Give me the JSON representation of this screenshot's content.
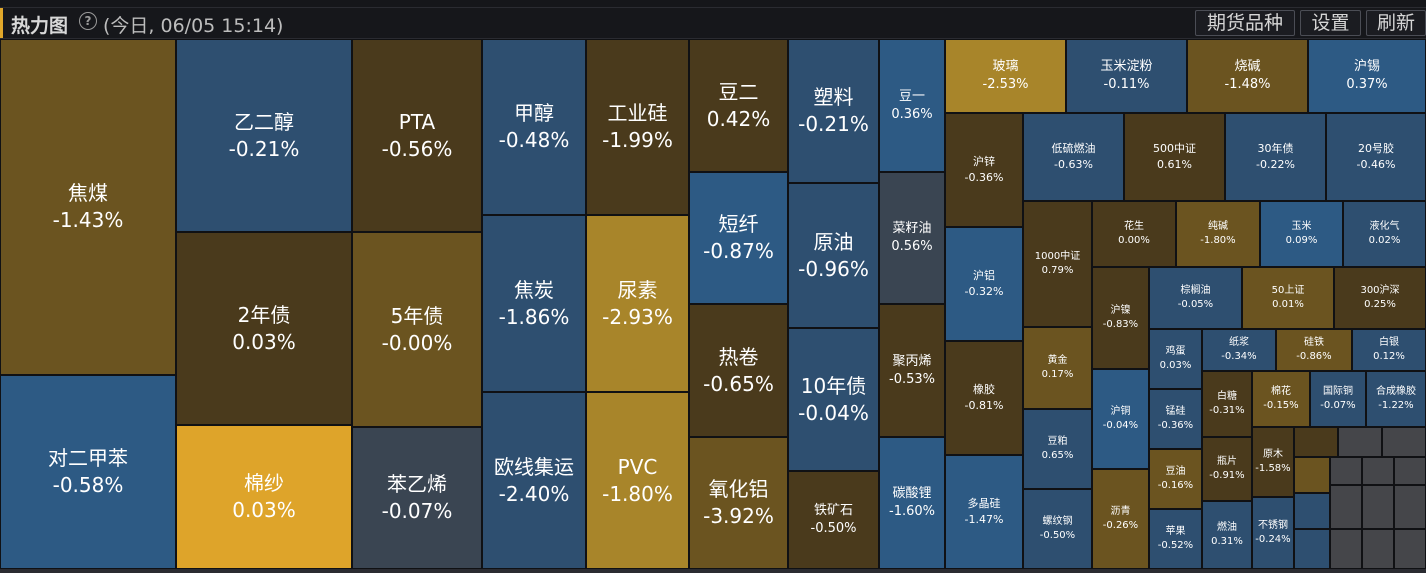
{
  "header": {
    "title": "热力图",
    "help_icon": "?",
    "subtitle": "(今日, 06/05 15:14)",
    "buttons": {
      "varieties": "期货品种",
      "settings": "设置",
      "refresh": "刷新"
    }
  },
  "colors": {
    "strong_down_blue": "#2d5a84",
    "down_blue": "#2e4f70",
    "flat_slate": "#3a4552",
    "up_brown": "#6b5420",
    "dark_brown": "#4a3a1c",
    "strong_gold": "#a8852a",
    "bright_gold": "#dea42a",
    "empty_gray": "#45464a"
  },
  "tiles": [
    {
      "name": "焦煤",
      "pct": "-1.43%"
    },
    {
      "name": "对二甲苯",
      "pct": "-0.58%"
    },
    {
      "name": "乙二醇",
      "pct": "-0.21%"
    },
    {
      "name": "2年债",
      "pct": "0.03%"
    },
    {
      "name": "棉纱",
      "pct": "0.03%"
    },
    {
      "name": "PTA",
      "pct": "-0.56%"
    },
    {
      "name": "5年债",
      "pct": "-0.00%"
    },
    {
      "name": "苯乙烯",
      "pct": "-0.07%"
    },
    {
      "name": "甲醇",
      "pct": "-0.48%"
    },
    {
      "name": "焦炭",
      "pct": "-1.86%"
    },
    {
      "name": "欧线集运",
      "pct": "-2.40%"
    },
    {
      "name": "工业硅",
      "pct": "-1.99%"
    },
    {
      "name": "尿素",
      "pct": "-2.93%"
    },
    {
      "name": "PVC",
      "pct": "-1.80%"
    },
    {
      "name": "豆二",
      "pct": "0.42%"
    },
    {
      "name": "短纤",
      "pct": "-0.87%"
    },
    {
      "name": "热卷",
      "pct": "-0.65%"
    },
    {
      "name": "氧化铝",
      "pct": "-3.92%"
    },
    {
      "name": "塑料",
      "pct": "-0.21%"
    },
    {
      "name": "原油",
      "pct": "-0.96%"
    },
    {
      "name": "10年债",
      "pct": "-0.04%"
    },
    {
      "name": "铁矿石",
      "pct": "-0.50%"
    },
    {
      "name": "豆一",
      "pct": "0.36%"
    },
    {
      "name": "菜籽油",
      "pct": "0.56%"
    },
    {
      "name": "聚丙烯",
      "pct": "-0.53%"
    },
    {
      "name": "碳酸锂",
      "pct": "-1.60%"
    },
    {
      "name": "玻璃",
      "pct": "-2.53%"
    },
    {
      "name": "玉米淀粉",
      "pct": "-0.11%"
    },
    {
      "name": "烧碱",
      "pct": "-1.48%"
    },
    {
      "name": "沪锡",
      "pct": "0.37%"
    },
    {
      "name": "沪锌",
      "pct": "-0.36%"
    },
    {
      "name": "沪铝",
      "pct": "-0.32%"
    },
    {
      "name": "橡胶",
      "pct": "-0.81%"
    },
    {
      "name": "多晶硅",
      "pct": "-1.47%"
    },
    {
      "name": "低硫燃油",
      "pct": "-0.63%"
    },
    {
      "name": "500中证",
      "pct": "0.61%"
    },
    {
      "name": "30年债",
      "pct": "-0.22%"
    },
    {
      "name": "20号胶",
      "pct": "-0.46%"
    },
    {
      "name": "1000中证",
      "pct": "0.79%"
    },
    {
      "name": "花生",
      "pct": "0.00%"
    },
    {
      "name": "纯碱",
      "pct": "-1.80%"
    },
    {
      "name": "玉米",
      "pct": "0.09%"
    },
    {
      "name": "液化气",
      "pct": "0.02%"
    },
    {
      "name": "沪镍",
      "pct": "-0.83%"
    },
    {
      "name": "棕榈油",
      "pct": "-0.05%"
    },
    {
      "name": "50上证",
      "pct": "0.01%"
    },
    {
      "name": "300沪深",
      "pct": "0.25%"
    },
    {
      "name": "黄金",
      "pct": "0.17%"
    },
    {
      "name": "豆粕",
      "pct": "0.65%"
    },
    {
      "name": "螺纹钢",
      "pct": "-0.50%"
    },
    {
      "name": "沪铜",
      "pct": "-0.04%"
    },
    {
      "name": "沥青",
      "pct": "-0.26%"
    },
    {
      "name": "鸡蛋",
      "pct": "0.03%"
    },
    {
      "name": "锰硅",
      "pct": "-0.36%"
    },
    {
      "name": "豆油",
      "pct": "-0.16%"
    },
    {
      "name": "苹果",
      "pct": "-0.52%"
    },
    {
      "name": "纸浆",
      "pct": "-0.34%"
    },
    {
      "name": "硅铁",
      "pct": "-0.86%"
    },
    {
      "name": "白银",
      "pct": "0.12%"
    },
    {
      "name": "白糖",
      "pct": "-0.31%"
    },
    {
      "name": "棉花",
      "pct": "-0.15%"
    },
    {
      "name": "国际铜",
      "pct": "-0.07%"
    },
    {
      "name": "合成橡胶",
      "pct": "-1.22%"
    },
    {
      "name": "瓶片",
      "pct": "-0.91%"
    },
    {
      "name": "原木",
      "pct": "-1.58%"
    },
    {
      "name": "燃油",
      "pct": "0.31%"
    },
    {
      "name": "不锈钢",
      "pct": "-0.24%"
    }
  ]
}
